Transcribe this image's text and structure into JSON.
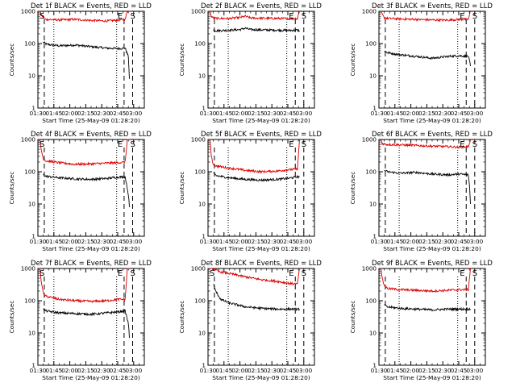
{
  "figure": {
    "start_date_label": "Start Time (25-May-09 01:28:20)",
    "ylabel": "Counts/sec",
    "colors": {
      "events": "#000000",
      "lld": "#dd0000",
      "frame": "#000000"
    }
  },
  "chart_data": [
    {
      "type": "line",
      "detector": "1f",
      "title": "Det 1f BLACK = Events, RED = LLD",
      "xlabel": "Start Time (25-May-09 01:28:20)",
      "ylabel": "Counts/sec",
      "x_range_min": [
        90,
        190
      ],
      "y_log": true,
      "ylim": [
        1,
        1000
      ],
      "xticks": [
        "01:30",
        "01:45",
        "02:00",
        "02:15",
        "02:30",
        "02:45",
        "03:00"
      ],
      "yticks": [
        "1",
        "10",
        "100",
        "1000"
      ],
      "start_marker": "S",
      "end_marker": "E",
      "stop_marker": "S",
      "dashed_x_min": [
        96,
        171,
        179
      ],
      "dotted_x_min": [
        105,
        164
      ],
      "series": [
        {
          "name": "Events",
          "color": "#000000",
          "x_min": [
            95,
            98,
            110,
            125,
            140,
            155,
            165,
            172,
            175,
            176
          ],
          "values": [
            110,
            95,
            85,
            90,
            80,
            72,
            70,
            72,
            40,
            8
          ]
        },
        {
          "name": "LLD",
          "color": "#dd0000",
          "x_min": [
            92,
            93,
            95,
            97,
            110,
            125,
            140,
            155,
            165,
            172,
            174,
            176
          ],
          "values": [
            1000,
            800,
            640,
            560,
            540,
            560,
            520,
            500,
            530,
            560,
            1000,
            1000
          ]
        }
      ]
    },
    {
      "type": "line",
      "detector": "2f",
      "title": "Det 2f BLACK = Events, RED = LLD",
      "xlabel": "Start Time (25-May-09 01:28:20)",
      "ylabel": "Counts/sec",
      "x_range_min": [
        90,
        190
      ],
      "y_log": true,
      "ylim": [
        1,
        1000
      ],
      "xticks": [
        "01:30",
        "01:45",
        "02:00",
        "02:15",
        "02:30",
        "02:45",
        "03:00"
      ],
      "yticks": [
        "1",
        "10",
        "100",
        "1000"
      ],
      "start_marker": "",
      "end_marker": "E",
      "stop_marker": "S",
      "dashed_x_min": [
        96,
        172,
        180
      ],
      "dotted_x_min": [
        109,
        164
      ],
      "series": [
        {
          "name": "Events",
          "color": "#000000",
          "x_min": [
            95,
            98,
            110,
            120,
            125,
            130,
            140,
            155,
            165,
            174,
            176
          ],
          "values": [
            260,
            250,
            260,
            270,
            300,
            270,
            265,
            260,
            255,
            260,
            250
          ]
        },
        {
          "name": "LLD",
          "color": "#dd0000",
          "x_min": [
            92,
            93,
            95,
            98,
            110,
            120,
            125,
            130,
            140,
            155,
            165,
            174,
            176
          ],
          "values": [
            1000,
            700,
            620,
            600,
            600,
            640,
            700,
            620,
            610,
            600,
            590,
            600,
            1000
          ]
        }
      ]
    },
    {
      "type": "line",
      "detector": "3f",
      "title": "Det 3f BLACK = Events, RED = LLD",
      "xlabel": "Start Time (25-May-09 01:28:20)",
      "ylabel": "Counts/sec",
      "x_range_min": [
        90,
        190
      ],
      "y_log": true,
      "ylim": [
        1,
        1000
      ],
      "xticks": [
        "01:30",
        "01:45",
        "02:00",
        "02:15",
        "02:30",
        "02:45",
        "03:00"
      ],
      "yticks": [
        "1",
        "10",
        "100",
        "1000"
      ],
      "start_marker": "",
      "end_marker": "E",
      "stop_marker": "S",
      "dashed_x_min": [
        96,
        172,
        180
      ],
      "dotted_x_min": [
        109,
        164
      ],
      "series": [
        {
          "name": "Events",
          "color": "#000000",
          "x_min": [
            95,
            98,
            110,
            125,
            140,
            155,
            165,
            174,
            175,
            176
          ],
          "values": [
            60,
            52,
            45,
            40,
            35,
            40,
            42,
            40,
            30,
            20
          ]
        },
        {
          "name": "LLD",
          "color": "#dd0000",
          "x_min": [
            92,
            93,
            95,
            98,
            110,
            125,
            140,
            155,
            165,
            174,
            176
          ],
          "values": [
            1000,
            800,
            640,
            600,
            580,
            560,
            540,
            530,
            560,
            560,
            1000
          ]
        }
      ]
    },
    {
      "type": "line",
      "detector": "4f",
      "title": "Det 4f BLACK = Events, RED = LLD",
      "xlabel": "Start Time (25-May-09 01:28:20)",
      "ylabel": "Counts/sec",
      "x_range_min": [
        90,
        190
      ],
      "y_log": true,
      "ylim": [
        1,
        1000
      ],
      "xticks": [
        "01:30",
        "01:45",
        "02:00",
        "02:15",
        "02:30",
        "02:45",
        "03:00"
      ],
      "yticks": [
        "1",
        "10",
        "100",
        "1000"
      ],
      "start_marker": "S",
      "end_marker": "E",
      "stop_marker": "S",
      "dashed_x_min": [
        96,
        171,
        179
      ],
      "dotted_x_min": [
        105,
        164
      ],
      "series": [
        {
          "name": "Events",
          "color": "#000000",
          "x_min": [
            95,
            98,
            110,
            125,
            140,
            155,
            165,
            172,
            175,
            176
          ],
          "values": [
            80,
            72,
            65,
            60,
            58,
            62,
            68,
            70,
            20,
            8
          ]
        },
        {
          "name": "LLD",
          "color": "#dd0000",
          "x_min": [
            92,
            93,
            95,
            97,
            110,
            125,
            140,
            155,
            165,
            172,
            174,
            176
          ],
          "values": [
            1000,
            500,
            260,
            220,
            190,
            170,
            175,
            185,
            190,
            200,
            1000,
            1000
          ]
        }
      ]
    },
    {
      "type": "line",
      "detector": "5f",
      "title": "Det 5f BLACK = Events, RED = LLD",
      "xlabel": "Start Time (25-May-09 01:28:20)",
      "ylabel": "Counts/sec",
      "x_range_min": [
        90,
        190
      ],
      "y_log": true,
      "ylim": [
        1,
        1000
      ],
      "xticks": [
        "01:30",
        "01:45",
        "02:00",
        "02:15",
        "02:30",
        "02:45",
        "03:00"
      ],
      "yticks": [
        "1",
        "10",
        "100",
        "1000"
      ],
      "start_marker": "",
      "end_marker": "E",
      "stop_marker": "S",
      "dashed_x_min": [
        96,
        172,
        180
      ],
      "dotted_x_min": [
        109,
        164
      ],
      "series": [
        {
          "name": "Events",
          "color": "#000000",
          "x_min": [
            95,
            98,
            110,
            125,
            140,
            155,
            165,
            174,
            176
          ],
          "values": [
            90,
            75,
            65,
            58,
            55,
            58,
            62,
            70,
            70
          ]
        },
        {
          "name": "LLD",
          "color": "#dd0000",
          "x_min": [
            92,
            93,
            95,
            98,
            110,
            125,
            140,
            155,
            165,
            174,
            176
          ],
          "values": [
            1000,
            300,
            170,
            150,
            130,
            110,
            100,
            105,
            115,
            120,
            1000
          ]
        }
      ]
    },
    {
      "type": "line",
      "detector": "6f",
      "title": "Det 6f BLACK = Events, RED = LLD",
      "xlabel": "Start Time (25-May-09 01:28:20)",
      "ylabel": "Counts/sec",
      "x_range_min": [
        90,
        190
      ],
      "y_log": true,
      "ylim": [
        1,
        1000
      ],
      "xticks": [
        "01:30",
        "01:45",
        "02:00",
        "02:15",
        "02:30",
        "02:45",
        "03:00"
      ],
      "yticks": [
        "1",
        "10",
        "100",
        "1000"
      ],
      "start_marker": "",
      "end_marker": "E",
      "stop_marker": "S",
      "dashed_x_min": [
        96,
        172,
        180
      ],
      "dotted_x_min": [
        109,
        164
      ],
      "series": [
        {
          "name": "Events",
          "color": "#000000",
          "x_min": [
            95,
            98,
            110,
            125,
            140,
            155,
            165,
            174,
            175,
            176
          ],
          "values": [
            110,
            100,
            90,
            95,
            85,
            80,
            85,
            80,
            40,
            10
          ]
        },
        {
          "name": "LLD",
          "color": "#dd0000",
          "x_min": [
            92,
            93,
            95,
            98,
            110,
            125,
            140,
            155,
            165,
            174,
            176
          ],
          "values": [
            1000,
            750,
            720,
            700,
            680,
            650,
            620,
            600,
            580,
            600,
            1000
          ]
        }
      ]
    },
    {
      "type": "line",
      "detector": "7f",
      "title": "Det 7f BLACK = Events, RED = LLD",
      "xlabel": "Start Time (25-May-09 01:28:20)",
      "ylabel": "Counts/sec",
      "x_range_min": [
        90,
        190
      ],
      "y_log": true,
      "ylim": [
        1,
        1000
      ],
      "xticks": [
        "01:30",
        "01:45",
        "02:00",
        "02:15",
        "02:30",
        "02:45",
        "03:00"
      ],
      "yticks": [
        "1",
        "10",
        "100",
        "1000"
      ],
      "start_marker": "S",
      "end_marker": "E",
      "stop_marker": "S",
      "dashed_x_min": [
        96,
        171,
        179
      ],
      "dotted_x_min": [
        105,
        164
      ],
      "series": [
        {
          "name": "Events",
          "color": "#000000",
          "x_min": [
            95,
            98,
            110,
            125,
            140,
            155,
            165,
            172,
            175,
            176
          ],
          "values": [
            55,
            48,
            42,
            40,
            38,
            42,
            45,
            48,
            20,
            7
          ]
        },
        {
          "name": "LLD",
          "color": "#dd0000",
          "x_min": [
            92,
            93,
            95,
            97,
            110,
            125,
            140,
            155,
            165,
            172,
            174,
            176
          ],
          "values": [
            1000,
            450,
            170,
            140,
            110,
            100,
            95,
            100,
            110,
            110,
            1000,
            1000
          ]
        }
      ]
    },
    {
      "type": "line",
      "detector": "8f",
      "title": "Det 8f BLACK = Events, RED = LLD",
      "xlabel": "Start Time (25-May-09 01:28:20)",
      "ylabel": "Counts/sec",
      "x_range_min": [
        90,
        190
      ],
      "y_log": true,
      "ylim": [
        1,
        1000
      ],
      "xticks": [
        "01:30",
        "01:45",
        "02:00",
        "02:15",
        "02:30",
        "02:45",
        "03:00"
      ],
      "yticks": [
        "1",
        "10",
        "100",
        "1000"
      ],
      "start_marker": "S",
      "end_marker": "E",
      "stop_marker": "S",
      "dashed_x_min": [
        96,
        172,
        180
      ],
      "dotted_x_min": [
        109,
        164
      ],
      "series": [
        {
          "name": "Events",
          "color": "#000000",
          "x_min": [
            95,
            96,
            98,
            102,
            110,
            125,
            140,
            155,
            165,
            174,
            176
          ],
          "values": [
            350,
            250,
            180,
            110,
            85,
            65,
            58,
            55,
            55,
            55,
            55
          ]
        },
        {
          "name": "LLD",
          "color": "#dd0000",
          "x_min": [
            92,
            94,
            97,
            100,
            110,
            125,
            140,
            155,
            165,
            174,
            176
          ],
          "values": [
            1000,
            1000,
            900,
            800,
            700,
            550,
            450,
            400,
            350,
            330,
            1000
          ]
        }
      ]
    },
    {
      "type": "line",
      "detector": "9f",
      "title": "Det 9f BLACK = Events, RED = LLD",
      "xlabel": "Start Time (25-May-09 01:28:20)",
      "ylabel": "Counts/sec",
      "x_range_min": [
        90,
        190
      ],
      "y_log": true,
      "ylim": [
        1,
        1000
      ],
      "xticks": [
        "01:30",
        "01:45",
        "02:00",
        "02:15",
        "02:30",
        "02:45",
        "03:00"
      ],
      "yticks": [
        "1",
        "10",
        "100",
        "1000"
      ],
      "start_marker": "",
      "end_marker": "E",
      "stop_marker": "S",
      "dashed_x_min": [
        96,
        172,
        180
      ],
      "dotted_x_min": [
        109,
        164
      ],
      "series": [
        {
          "name": "Events",
          "color": "#000000",
          "x_min": [
            95,
            97,
            110,
            125,
            140,
            155,
            165,
            174,
            176
          ],
          "values": [
            80,
            65,
            58,
            55,
            52,
            55,
            55,
            55,
            55
          ]
        },
        {
          "name": "LLD",
          "color": "#dd0000",
          "x_min": [
            92,
            93,
            95,
            98,
            110,
            125,
            140,
            155,
            165,
            174,
            176
          ],
          "values": [
            1000,
            500,
            300,
            240,
            220,
            210,
            200,
            210,
            220,
            220,
            1000
          ]
        }
      ]
    }
  ]
}
